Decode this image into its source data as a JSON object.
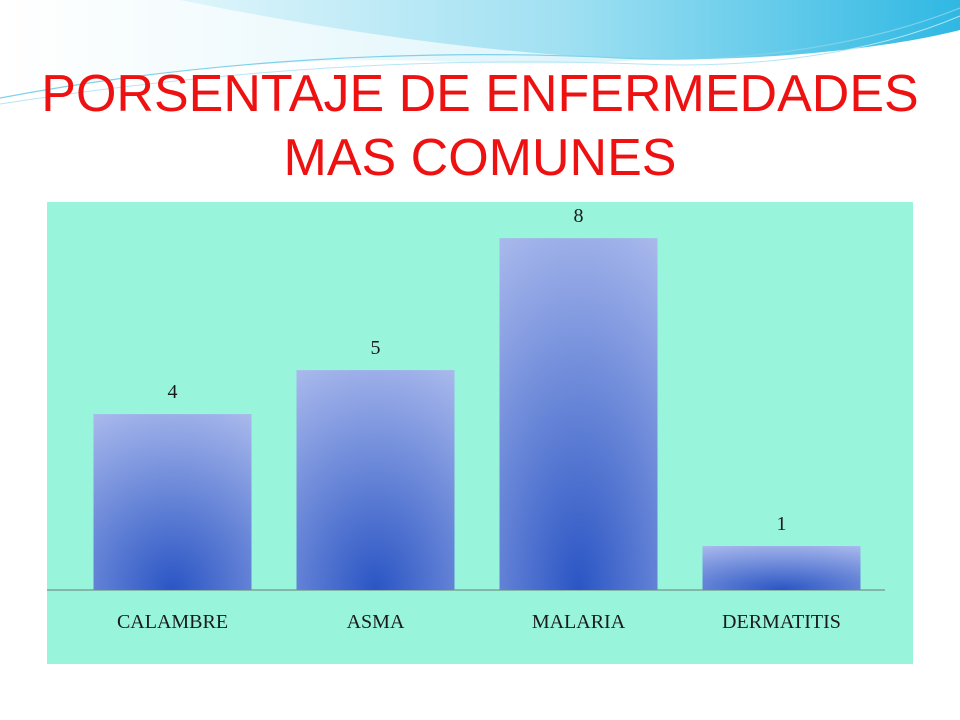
{
  "slide": {
    "title_line1": "PORSENTAJE DE ENFERMEDADES",
    "title_line2": "MAS COMUNES",
    "title_color": "#ee1111",
    "chart_background": "#98f5dc",
    "bar_color_top": "#a8b8ec",
    "bar_color_bottom": "#2a55c4"
  },
  "chart_data": {
    "type": "bar",
    "categories": [
      "CALAMBRE",
      "ASMA",
      "MALARIA",
      "DERMATITIS"
    ],
    "values": [
      4,
      5,
      8,
      1
    ],
    "data_labels": [
      "4",
      "5",
      "8",
      "1"
    ],
    "title": "PORSENTAJE DE ENFERMEDADES MAS COMUNES",
    "xlabel": "",
    "ylabel": "",
    "ylim": [
      0,
      8.8
    ],
    "grid": false,
    "legend": "none"
  }
}
